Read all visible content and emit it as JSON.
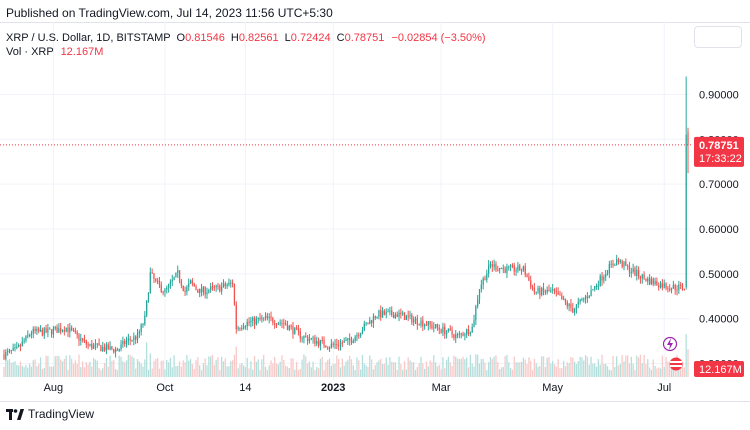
{
  "header": {
    "published": "Published on TradingView.com, Jul 14, 2023 11:56 UTC+5:30"
  },
  "legend": {
    "symbol": "XRP / U.S. Dollar, 1D, BITSTAMP",
    "o_label": "O",
    "o": "0.81546",
    "h_label": "H",
    "h": "0.82561",
    "l_label": "L",
    "l": "0.72424",
    "c_label": "C",
    "c": "0.78751",
    "change": "−0.02854 (−3.50%)",
    "vol_label": "Vol · XRP",
    "vol": "12.167M"
  },
  "price_tag": {
    "price": "0.78751",
    "countdown": "17:33:22"
  },
  "volume_tag": "12.167M",
  "footer": {
    "brand": "TradingView"
  },
  "colors": {
    "up": "#26a69a",
    "down": "#ef5350",
    "up_vol": "#b2dfdb",
    "down_vol": "#f7c9c8",
    "tag": "#f23645",
    "grid": "#f0f3fa",
    "axis_text": "#131722"
  },
  "chart_data": {
    "type": "candlestick",
    "symbol": "XRP / U.S. Dollar",
    "interval": "1D",
    "exchange": "BITSTAMP",
    "y_ticks": [
      0.3,
      0.4,
      0.5,
      0.6,
      0.7,
      0.8,
      0.9
    ],
    "y_tick_labels": [
      "0.30000",
      "0.40000",
      "0.50000",
      "0.60000",
      "0.70000",
      "0.80000",
      "0.90000"
    ],
    "ylim": [
      0.27,
      0.95
    ],
    "x_tick_labels": [
      "Aug",
      "Oct",
      "14",
      "2023",
      "Mar",
      "May",
      "Jul"
    ],
    "x_tick_dates": [
      "2022-08-01",
      "2022-10-01",
      "2022-11-14",
      "2023-01-01",
      "2023-03-01",
      "2023-05-01",
      "2023-07-01"
    ],
    "date_range": [
      "2022-07-05",
      "2023-07-14"
    ],
    "last": {
      "date": "2023-07-14",
      "open": 0.81546,
      "high": 0.82561,
      "low": 0.72424,
      "close": 0.78751,
      "change": -0.02854,
      "change_pct": -3.5,
      "volume": "12.167M"
    },
    "anchors": [
      [
        "2022-07-05",
        0.32
      ],
      [
        "2022-07-12",
        0.33
      ],
      [
        "2022-07-20",
        0.37
      ],
      [
        "2022-07-28",
        0.37
      ],
      [
        "2022-08-08",
        0.38
      ],
      [
        "2022-08-20",
        0.34
      ],
      [
        "2022-09-05",
        0.33
      ],
      [
        "2022-09-10",
        0.35
      ],
      [
        "2022-09-16",
        0.36
      ],
      [
        "2022-09-20",
        0.4
      ],
      [
        "2022-09-23",
        0.5
      ],
      [
        "2022-09-26",
        0.48
      ],
      [
        "2022-10-01",
        0.46
      ],
      [
        "2022-10-08",
        0.5
      ],
      [
        "2022-10-12",
        0.46
      ],
      [
        "2022-10-15",
        0.48
      ],
      [
        "2022-10-20",
        0.46
      ],
      [
        "2022-11-01",
        0.47
      ],
      [
        "2022-11-07",
        0.48
      ],
      [
        "2022-11-09",
        0.38
      ],
      [
        "2022-11-14",
        0.39
      ],
      [
        "2022-11-25",
        0.4
      ],
      [
        "2022-12-05",
        0.39
      ],
      [
        "2022-12-15",
        0.36
      ],
      [
        "2022-12-30",
        0.34
      ],
      [
        "2023-01-10",
        0.35
      ],
      [
        "2023-01-25",
        0.41
      ],
      [
        "2023-02-05",
        0.41
      ],
      [
        "2023-02-20",
        0.39
      ],
      [
        "2023-03-05",
        0.37
      ],
      [
        "2023-03-10",
        0.36
      ],
      [
        "2023-03-18",
        0.38
      ],
      [
        "2023-03-22",
        0.47
      ],
      [
        "2023-03-28",
        0.52
      ],
      [
        "2023-04-05",
        0.51
      ],
      [
        "2023-04-15",
        0.51
      ],
      [
        "2023-04-21",
        0.46
      ],
      [
        "2023-05-01",
        0.46
      ],
      [
        "2023-05-12",
        0.42
      ],
      [
        "2023-05-22",
        0.46
      ],
      [
        "2023-05-31",
        0.51
      ],
      [
        "2023-06-05",
        0.53
      ],
      [
        "2023-06-12",
        0.51
      ],
      [
        "2023-06-20",
        0.49
      ],
      [
        "2023-06-26",
        0.48
      ],
      [
        "2023-07-05",
        0.47
      ],
      [
        "2023-07-12",
        0.47
      ],
      [
        "2023-07-13",
        0.81
      ],
      [
        "2023-07-14",
        0.79
      ]
    ]
  }
}
